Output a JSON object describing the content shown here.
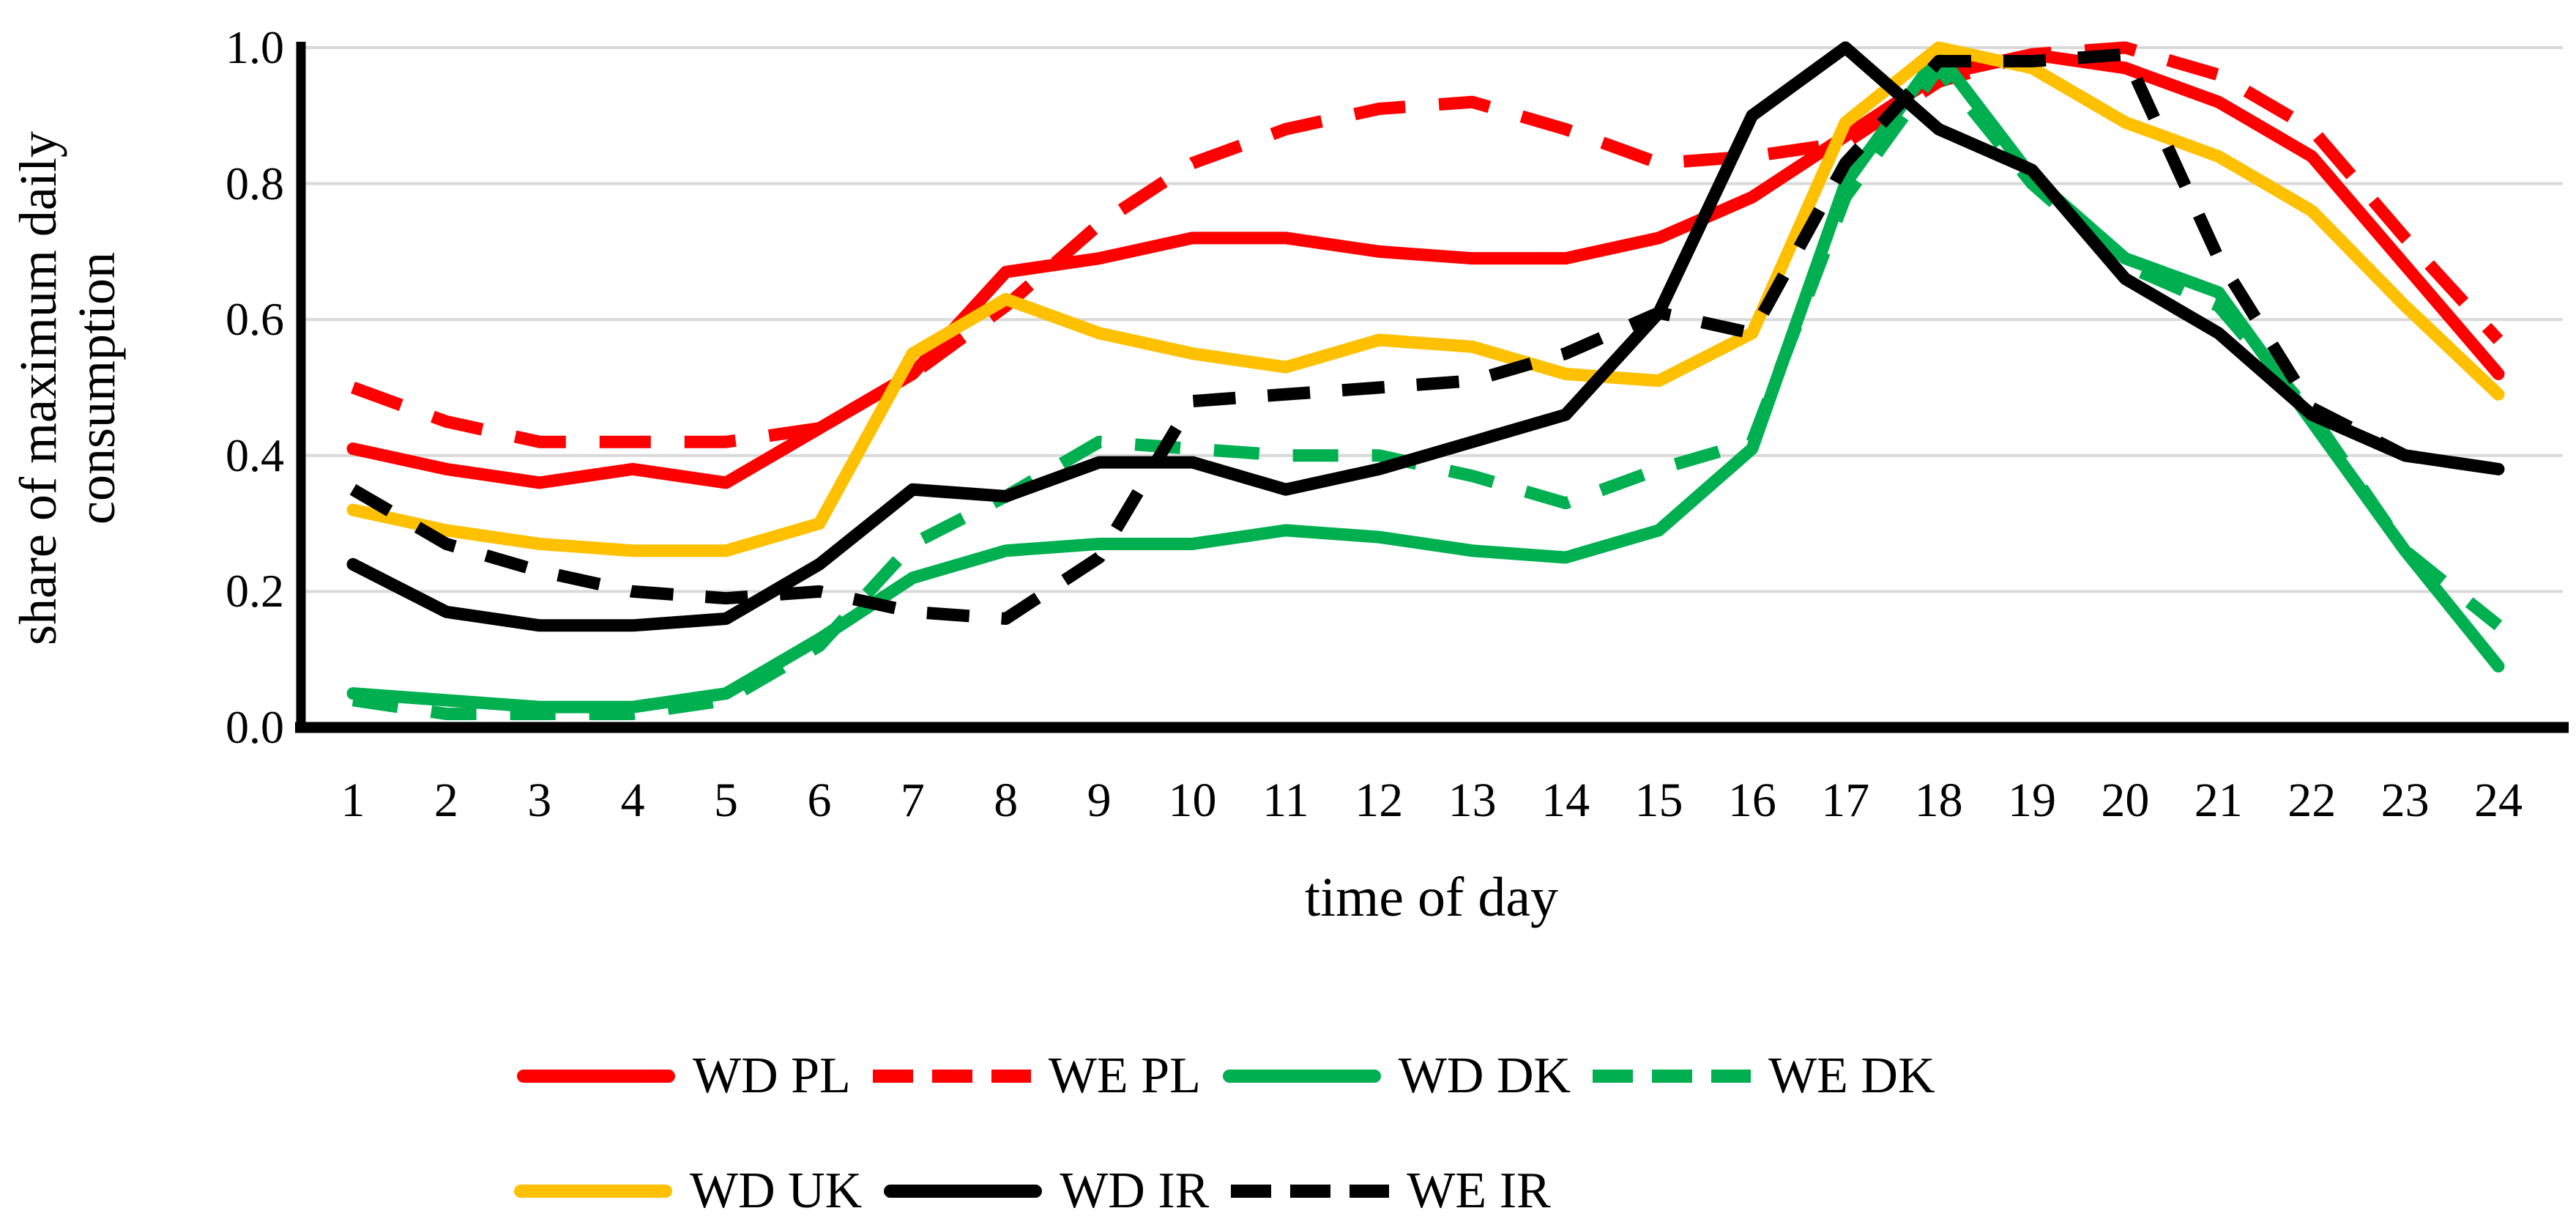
{
  "chart_data": {
    "type": "line",
    "xlabel": "time of day",
    "ylabel": "share of maximum daily consumption",
    "ylabel_lines": [
      "share of maximum daily",
      "consumption"
    ],
    "x": [
      1,
      2,
      3,
      4,
      5,
      6,
      7,
      8,
      9,
      10,
      11,
      12,
      13,
      14,
      15,
      16,
      17,
      18,
      19,
      20,
      21,
      22,
      23,
      24
    ],
    "x_tick_labels": [
      "1",
      "2",
      "3",
      "4",
      "5",
      "6",
      "7",
      "8",
      "9",
      "10",
      "11",
      "12",
      "13",
      "14",
      "15",
      "16",
      "17",
      "18",
      "19",
      "20",
      "21",
      "22",
      "23",
      "24"
    ],
    "y_ticks": [
      {
        "value": 0.0,
        "label": "0.0"
      },
      {
        "value": 0.2,
        "label": "0.2"
      },
      {
        "value": 0.4,
        "label": "0.4"
      },
      {
        "value": 0.6,
        "label": "0.6"
      },
      {
        "value": 0.8,
        "label": "0.8"
      },
      {
        "value": 1.0,
        "label": "1.0"
      }
    ],
    "ylim": [
      0.0,
      1.0
    ],
    "grid": "horizontal",
    "gridline_color": "#D9D9D9",
    "axis_color": "#000000",
    "legend_position": "bottom",
    "series": [
      {
        "name": "WD PL",
        "color": "#FF0000",
        "dash": null,
        "values": [
          0.41,
          0.38,
          0.36,
          0.38,
          0.36,
          0.44,
          0.52,
          0.67,
          0.69,
          0.72,
          0.72,
          0.7,
          0.69,
          0.69,
          0.72,
          0.78,
          0.87,
          0.96,
          0.99,
          0.97,
          0.92,
          0.84,
          0.68,
          0.52
        ]
      },
      {
        "name": "WE PL",
        "color": "#FF0000",
        "dash": "70 46",
        "values": [
          0.5,
          0.45,
          0.42,
          0.42,
          0.42,
          0.44,
          0.52,
          0.62,
          0.74,
          0.83,
          0.88,
          0.91,
          0.92,
          0.88,
          0.83,
          0.84,
          0.86,
          0.95,
          0.99,
          1.0,
          0.96,
          0.88,
          0.72,
          0.57
        ]
      },
      {
        "name": "WD DK",
        "color": "#00B050",
        "dash": null,
        "values": [
          0.05,
          0.04,
          0.03,
          0.03,
          0.05,
          0.13,
          0.22,
          0.26,
          0.27,
          0.27,
          0.29,
          0.28,
          0.26,
          0.25,
          0.29,
          0.41,
          0.8,
          0.99,
          0.81,
          0.69,
          0.64,
          0.45,
          0.26,
          0.09
        ]
      },
      {
        "name": "WE DK",
        "color": "#00B050",
        "dash": "62 46",
        "values": [
          0.04,
          0.02,
          0.02,
          0.02,
          0.04,
          0.12,
          0.27,
          0.34,
          0.42,
          0.41,
          0.4,
          0.4,
          0.37,
          0.33,
          0.38,
          0.42,
          0.78,
          0.97,
          0.8,
          0.68,
          0.62,
          0.46,
          0.26,
          0.15
        ]
      },
      {
        "name": "WD UK",
        "color": "#FFC000",
        "dash": null,
        "values": [
          0.32,
          0.29,
          0.27,
          0.26,
          0.26,
          0.3,
          0.55,
          0.63,
          0.58,
          0.55,
          0.53,
          0.57,
          0.56,
          0.52,
          0.51,
          0.58,
          0.89,
          1.0,
          0.97,
          0.89,
          0.84,
          0.76,
          0.62,
          0.49
        ]
      },
      {
        "name": "WD IR",
        "color": "#000000",
        "dash": null,
        "values": [
          0.24,
          0.17,
          0.15,
          0.15,
          0.16,
          0.24,
          0.35,
          0.34,
          0.39,
          0.39,
          0.35,
          0.38,
          0.42,
          0.46,
          0.61,
          0.9,
          1.0,
          0.88,
          0.82,
          0.66,
          0.58,
          0.46,
          0.4,
          0.38
        ]
      },
      {
        "name": "WE IR",
        "color": "#000000",
        "dash": "58 44",
        "values": [
          0.35,
          0.27,
          0.23,
          0.2,
          0.19,
          0.2,
          0.17,
          0.16,
          0.25,
          0.48,
          0.49,
          0.5,
          0.51,
          0.55,
          0.61,
          0.58,
          0.83,
          0.98,
          0.98,
          0.99,
          0.69,
          0.47,
          0.4,
          0.38
        ]
      }
    ]
  },
  "legend": {
    "rows": [
      [
        "WD PL",
        "WE PL",
        "WD DK",
        "WE DK"
      ],
      [
        "WD UK",
        "WD IR",
        "WE IR"
      ]
    ]
  }
}
